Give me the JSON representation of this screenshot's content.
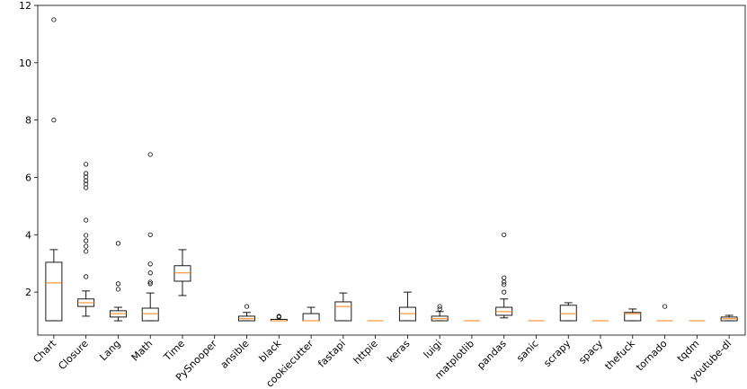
{
  "chart_data": {
    "type": "box",
    "categories": [
      "Chart",
      "Closure",
      "Lang",
      "Math",
      "Time",
      "PySnooper",
      "ansible",
      "black",
      "cookiecutter",
      "fastapi",
      "httpie",
      "keras",
      "luigi",
      "matplotlib",
      "pandas",
      "sanic",
      "scrapy",
      "spacy",
      "thefuck",
      "tornado",
      "tqdm",
      "youtube-dl"
    ],
    "boxes": [
      {
        "whislo": 1.0,
        "q1": 1.0,
        "med": 2.32,
        "q3": 3.04,
        "whishi": 3.48,
        "fliers": [
          11.5,
          8.0
        ]
      },
      {
        "whislo": 1.16,
        "q1": 1.5,
        "med": 1.63,
        "q3": 1.76,
        "whishi": 2.04,
        "fliers": [
          6.46,
          6.14,
          6.02,
          5.89,
          5.77,
          5.64,
          4.51,
          3.98,
          3.79,
          3.6,
          3.42,
          2.54
        ]
      },
      {
        "whislo": 1.0,
        "q1": 1.13,
        "med": 1.25,
        "q3": 1.35,
        "whishi": 1.47,
        "fliers": [
          3.7,
          2.29,
          2.1
        ]
      },
      {
        "whislo": 1.0,
        "q1": 1.0,
        "med": 1.25,
        "q3": 1.44,
        "whishi": 1.97,
        "fliers": [
          6.8,
          4.0,
          2.98,
          2.67,
          2.35,
          2.29
        ]
      },
      {
        "whislo": 1.88,
        "q1": 2.38,
        "med": 2.67,
        "q3": 2.92,
        "whishi": 3.48,
        "fliers": []
      },
      {
        "whislo": null,
        "q1": null,
        "med": null,
        "q3": null,
        "whishi": null,
        "fliers": []
      },
      {
        "whislo": 1.0,
        "q1": 1.0,
        "med": 1.07,
        "q3": 1.16,
        "whishi": 1.29,
        "fliers": [
          1.5
        ]
      },
      {
        "whislo": 1.0,
        "q1": 1.0,
        "med": 1.0,
        "q3": 1.05,
        "whishi": 1.05,
        "fliers": [
          1.16,
          1.13
        ]
      },
      {
        "whislo": 1.0,
        "q1": 1.0,
        "med": 1.0,
        "q3": 1.25,
        "whishi": 1.47,
        "fliers": []
      },
      {
        "whislo": 1.0,
        "q1": 1.0,
        "med": 1.5,
        "q3": 1.66,
        "whishi": 1.97,
        "fliers": []
      },
      {
        "whislo": 1.0,
        "q1": 1.0,
        "med": 1.0,
        "q3": 1.0,
        "whishi": 1.0,
        "fliers": []
      },
      {
        "whislo": 1.0,
        "q1": 1.0,
        "med": 1.25,
        "q3": 1.47,
        "whishi": 2.0,
        "fliers": []
      },
      {
        "whislo": 1.0,
        "q1": 1.0,
        "med": 1.07,
        "q3": 1.16,
        "whishi": 1.32,
        "fliers": [
          1.5,
          1.41
        ]
      },
      {
        "whislo": 1.0,
        "q1": 1.0,
        "med": 1.0,
        "q3": 1.0,
        "whishi": 1.0,
        "fliers": []
      },
      {
        "whislo": 1.1,
        "q1": 1.19,
        "med": 1.32,
        "q3": 1.47,
        "whishi": 1.76,
        "fliers": [
          4.0,
          2.5,
          2.35,
          2.26,
          2.0
        ]
      },
      {
        "whislo": 1.0,
        "q1": 1.0,
        "med": 1.0,
        "q3": 1.0,
        "whishi": 1.0,
        "fliers": []
      },
      {
        "whislo": 1.0,
        "q1": 1.0,
        "med": 1.25,
        "q3": 1.54,
        "whishi": 1.63,
        "fliers": []
      },
      {
        "whislo": 1.0,
        "q1": 1.0,
        "med": 1.0,
        "q3": 1.0,
        "whishi": 1.0,
        "fliers": []
      },
      {
        "whislo": 1.0,
        "q1": 1.0,
        "med": 1.25,
        "q3": 1.29,
        "whishi": 1.41,
        "fliers": []
      },
      {
        "whislo": 1.0,
        "q1": 1.0,
        "med": 1.0,
        "q3": 1.0,
        "whishi": 1.0,
        "fliers": [
          1.5
        ]
      },
      {
        "whislo": 1.0,
        "q1": 1.0,
        "med": 1.0,
        "q3": 1.0,
        "whishi": 1.0,
        "fliers": []
      },
      {
        "whislo": 1.0,
        "q1": 1.0,
        "med": 1.07,
        "q3": 1.13,
        "whishi": 1.19,
        "fliers": []
      }
    ],
    "box_color": "#000000",
    "median_color": "#ff7f0e",
    "ylim": [
      0.5,
      12
    ],
    "yticks": [
      2,
      4,
      6,
      8,
      10,
      12
    ],
    "grid": false
  }
}
